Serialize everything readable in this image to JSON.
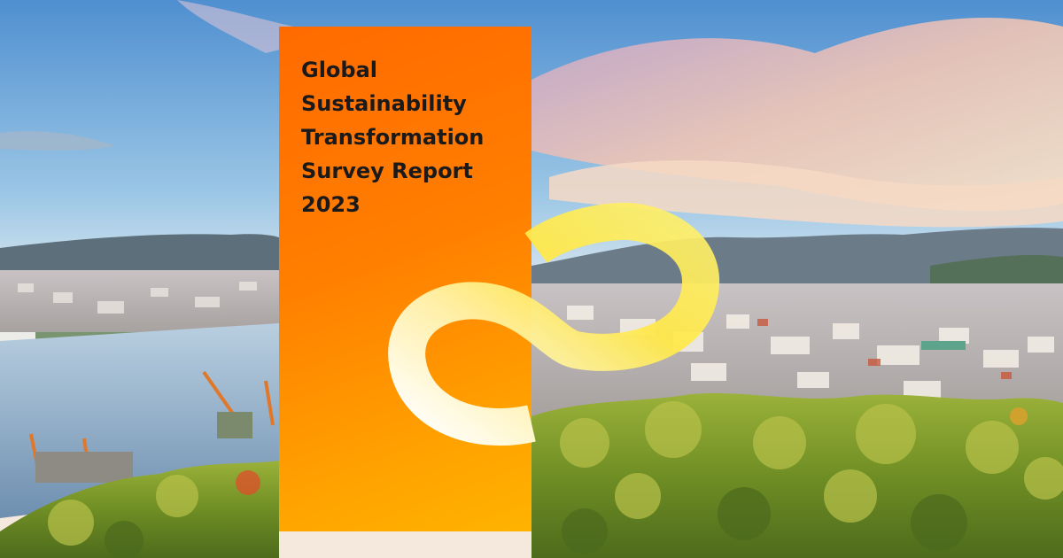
{
  "report": {
    "title_lines": [
      "Global",
      "Sustainability",
      "Transformation",
      "Survey Report",
      "2023"
    ]
  },
  "colors": {
    "panel_orange": "#ff7a00",
    "panel_amber": "#ffb300",
    "loop_yellow": "#ffe94a",
    "loop_white": "#ffffff",
    "sky_blue": "#7fb2dc",
    "cloud_pink": "#e9b7c8",
    "foliage_green": "#7a9a2a"
  },
  "scene": {
    "description_icon": "city-harbor-photo"
  }
}
